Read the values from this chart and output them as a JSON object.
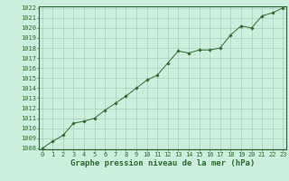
{
  "x": [
    0,
    1,
    2,
    3,
    4,
    5,
    6,
    7,
    8,
    9,
    10,
    11,
    12,
    13,
    14,
    15,
    16,
    17,
    18,
    19,
    20,
    21,
    22,
    23
  ],
  "y": [
    1008.0,
    1008.7,
    1009.3,
    1010.5,
    1010.7,
    1011.0,
    1011.8,
    1012.5,
    1013.2,
    1014.0,
    1014.8,
    1015.3,
    1016.5,
    1017.7,
    1017.5,
    1017.8,
    1017.8,
    1018.0,
    1019.3,
    1020.2,
    1020.0,
    1021.2,
    1021.5,
    1022.0
  ],
  "ylim": [
    1008,
    1022
  ],
  "xlim": [
    0,
    23
  ],
  "yticks": [
    1008,
    1009,
    1010,
    1011,
    1012,
    1013,
    1014,
    1015,
    1016,
    1017,
    1018,
    1019,
    1020,
    1021,
    1022
  ],
  "xticks": [
    0,
    1,
    2,
    3,
    4,
    5,
    6,
    7,
    8,
    9,
    10,
    11,
    12,
    13,
    14,
    15,
    16,
    17,
    18,
    19,
    20,
    21,
    22,
    23
  ],
  "xlabel": "Graphe pression niveau de la mer (hPa)",
  "line_color": "#2d6a2d",
  "marker": "D",
  "marker_size": 1.8,
  "bg_color": "#cceedd",
  "grid_color": "#aaccbb",
  "tick_fontsize": 5.0,
  "xlabel_fontsize": 6.5,
  "xlabel_bold": true
}
